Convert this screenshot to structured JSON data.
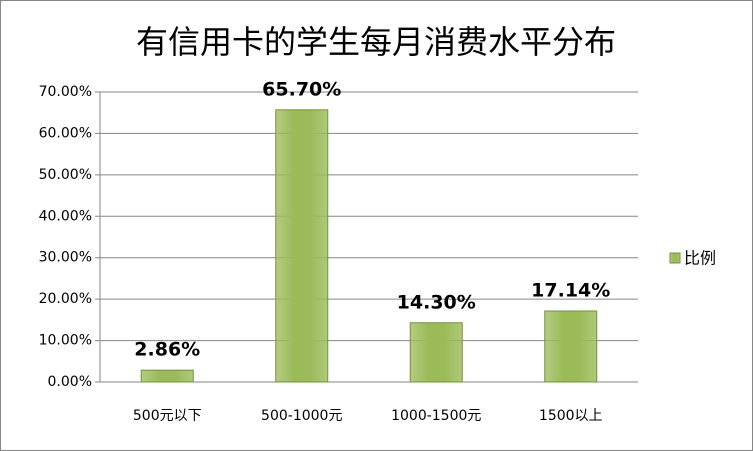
{
  "chart_data": {
    "type": "bar",
    "title": "有信用卡的学生每月消费水平分布",
    "categories": [
      "500元以下",
      "500-1000元",
      "1000-1500元",
      "1500以上"
    ],
    "series": [
      {
        "name": "比例",
        "color": "#9bbb59",
        "values": [
          2.86,
          65.7,
          14.3,
          17.14
        ],
        "value_labels": [
          "2.86%",
          "65.70%",
          "14.30%",
          "17.14%"
        ]
      }
    ],
    "ylim": [
      0,
      70
    ],
    "yticks": [
      {
        "value": 0,
        "label": "0.00%"
      },
      {
        "value": 10,
        "label": "10.00%"
      },
      {
        "value": 20,
        "label": "20.00%"
      },
      {
        "value": 30,
        "label": "30.00%"
      },
      {
        "value": 40,
        "label": "40.00%"
      },
      {
        "value": 50,
        "label": "50.00%"
      },
      {
        "value": 60,
        "label": "60.00%"
      },
      {
        "value": 70,
        "label": "70.00%"
      }
    ],
    "grid": true,
    "legend": "right"
  }
}
